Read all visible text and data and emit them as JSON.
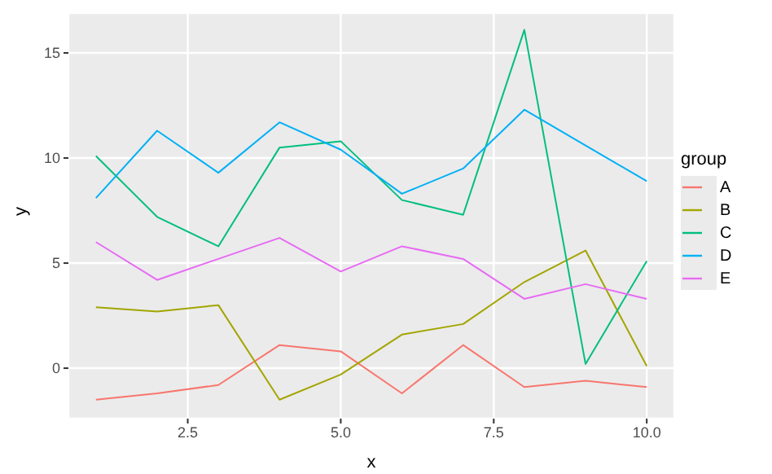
{
  "chart_data": {
    "type": "line",
    "xlabel": "x",
    "ylabel": "y",
    "legend_title": "group",
    "x": [
      1,
      2,
      3,
      4,
      5,
      6,
      7,
      8,
      9,
      10
    ],
    "series": [
      {
        "name": "A",
        "color": "#f8766d",
        "values": [
          -1.5,
          -1.2,
          -0.8,
          1.1,
          0.8,
          -1.2,
          1.1,
          -0.9,
          -0.6,
          -0.9
        ]
      },
      {
        "name": "B",
        "color": "#a3a500",
        "values": [
          2.9,
          2.7,
          3.0,
          -1.5,
          -0.3,
          1.6,
          2.1,
          4.1,
          5.6,
          0.1
        ]
      },
      {
        "name": "C",
        "color": "#00bf7d",
        "values": [
          10.1,
          7.2,
          5.8,
          10.5,
          10.8,
          8.0,
          7.3,
          16.1,
          0.2,
          5.1
        ]
      },
      {
        "name": "D",
        "color": "#00b0f6",
        "values": [
          8.1,
          11.3,
          9.3,
          11.7,
          10.4,
          8.3,
          9.5,
          12.3,
          10.6,
          8.9
        ]
      },
      {
        "name": "E",
        "color": "#e76bf3",
        "values": [
          6.0,
          4.2,
          5.2,
          6.2,
          4.6,
          5.8,
          5.2,
          3.3,
          4.0,
          3.3
        ]
      }
    ],
    "xlim": [
      0.55,
      10.45
    ],
    "xticks": [
      2.5,
      {
        "value": 5,
        "label": "5.0"
      },
      7.5,
      {
        "value": 10,
        "label": "10.0"
      }
    ],
    "ylim": [
      -2.4,
      16.9
    ],
    "yticks": [
      0,
      5,
      10,
      15
    ],
    "grid": true,
    "legend": "right",
    "marker": "none",
    "line_style": "solid"
  }
}
